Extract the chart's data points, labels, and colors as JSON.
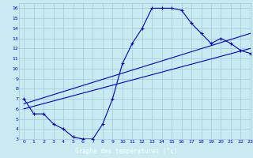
{
  "title": "Graphe des températures (°c)",
  "bg_color": "#c8eaf0",
  "grid_color": "#a0c8d8",
  "line_color": "#0000cc",
  "label_bg": "#2255aa",
  "label_fg": "#ffffff",
  "xlim": [
    -0.5,
    23
  ],
  "ylim": [
    3,
    16.5
  ],
  "xticks": [
    0,
    1,
    2,
    3,
    4,
    5,
    6,
    7,
    8,
    9,
    10,
    11,
    12,
    13,
    14,
    15,
    16,
    17,
    18,
    19,
    20,
    21,
    22,
    23
  ],
  "yticks": [
    3,
    4,
    5,
    6,
    7,
    8,
    9,
    10,
    11,
    12,
    13,
    14,
    15,
    16
  ],
  "curve_x": [
    0,
    1,
    2,
    3,
    4,
    5,
    6,
    7,
    8,
    9,
    10,
    11,
    12,
    13,
    14,
    15,
    16,
    17,
    18,
    19,
    20,
    21,
    22,
    23
  ],
  "curve_y": [
    7.0,
    5.5,
    5.5,
    4.5,
    4.0,
    3.2,
    3.0,
    3.0,
    4.5,
    7.0,
    10.5,
    12.5,
    14.0,
    16.0,
    16.0,
    16.0,
    15.8,
    14.5,
    13.5,
    12.5,
    13.0,
    12.5,
    11.8,
    11.5
  ],
  "line2_x": [
    0,
    23
  ],
  "line2_y": [
    6.5,
    13.5
  ],
  "line3_x": [
    0,
    23
  ],
  "line3_y": [
    6.0,
    12.0
  ]
}
